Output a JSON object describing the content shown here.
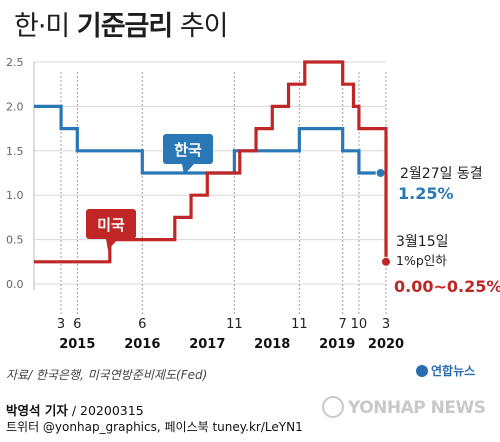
{
  "title": {
    "part1": "한·미 ",
    "part2": "기준금리",
    "part3": " 추이"
  },
  "source": "자료/ 한국은행, 미국연방준비제도(Fed)",
  "credit": {
    "author": "박영석 기자",
    "date": "20200315",
    "line2": "트위터 @yonhap_graphics, 페이스북 tuney.kr/LeYN1"
  },
  "logo": "연합뉴스",
  "watermark": "YONHAP NEWS",
  "colors": {
    "korea": "#2a77b6",
    "us": "#c02626",
    "callout_korea": "#2a77b6",
    "callout_us": "#c02626"
  },
  "annotations": {
    "korea_date": "2월27일 동결",
    "korea_value": "1.25%",
    "us_date": "3월15일",
    "us_change": "1%p인하",
    "us_value": "0.00~0.25%"
  },
  "chart_data": {
    "type": "line",
    "step": true,
    "ylim": [
      0,
      2.5
    ],
    "yticks": [
      "0.0",
      "0.5",
      "1.0",
      "1.5",
      "2.0",
      "2.5"
    ],
    "x_start": "2014-10",
    "x_end": "2020-03",
    "x_month_labels": [
      {
        "label": "3",
        "date": "2015-03"
      },
      {
        "label": "6",
        "date": "2015-06"
      },
      {
        "label": "6",
        "date": "2016-06"
      },
      {
        "label": "11",
        "date": "2017-11"
      },
      {
        "label": "11",
        "date": "2018-11"
      },
      {
        "label": "7",
        "date": "2019-07"
      },
      {
        "label": "10",
        "date": "2019-10"
      },
      {
        "label": "3",
        "date": "2020-03"
      }
    ],
    "x_year_labels": [
      {
        "label": "2015",
        "date": "2015-06"
      },
      {
        "label": "2016",
        "date": "2016-06"
      },
      {
        "label": "2017",
        "date": "2017-06"
      },
      {
        "label": "2018",
        "date": "2018-06"
      },
      {
        "label": "2019",
        "date": "2019-06"
      },
      {
        "label": "2020",
        "date": "2020-03"
      }
    ],
    "series": [
      {
        "name": "한국",
        "color": "#2a77b6",
        "points": [
          [
            "2014-10",
            2.0
          ],
          [
            "2015-03",
            1.75
          ],
          [
            "2015-06",
            1.5
          ],
          [
            "2016-06",
            1.25
          ],
          [
            "2017-11",
            1.5
          ],
          [
            "2018-11",
            1.75
          ],
          [
            "2019-07",
            1.5
          ],
          [
            "2019-10",
            1.25
          ],
          [
            "2020-02",
            1.25
          ]
        ]
      },
      {
        "name": "미국",
        "color": "#c02626",
        "points": [
          [
            "2014-10",
            0.25
          ],
          [
            "2015-12",
            0.5
          ],
          [
            "2016-12",
            0.75
          ],
          [
            "2017-03",
            1.0
          ],
          [
            "2017-06",
            1.25
          ],
          [
            "2017-12",
            1.5
          ],
          [
            "2018-03",
            1.75
          ],
          [
            "2018-06",
            2.0
          ],
          [
            "2018-09",
            2.25
          ],
          [
            "2018-12",
            2.5
          ],
          [
            "2019-07",
            2.25
          ],
          [
            "2019-09",
            2.0
          ],
          [
            "2019-10",
            1.75
          ],
          [
            "2020-03",
            1.0
          ],
          [
            "2020-03",
            0.25
          ]
        ]
      }
    ]
  }
}
